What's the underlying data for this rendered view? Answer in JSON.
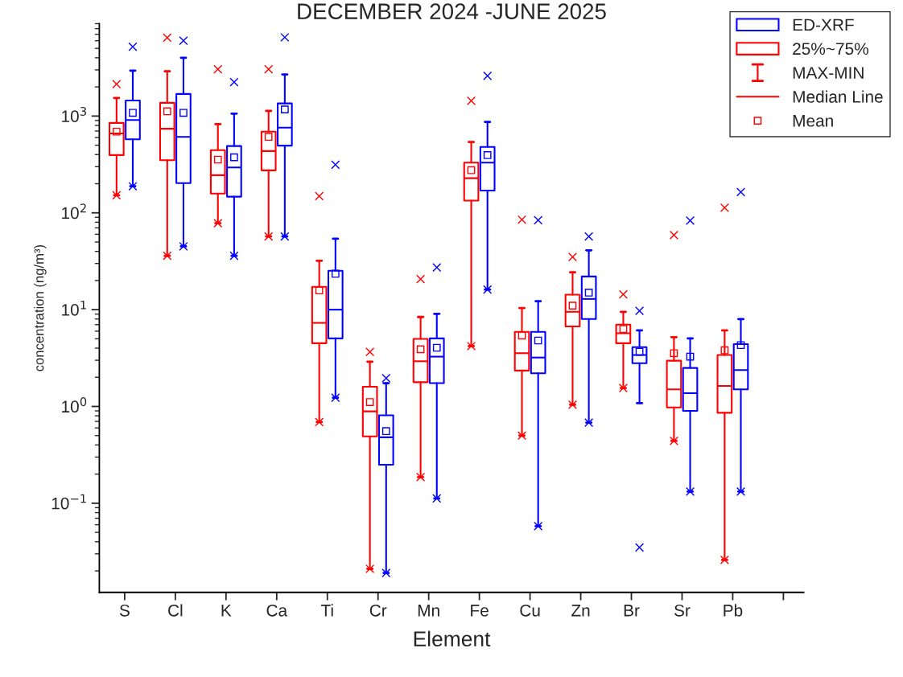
{
  "chart_data": {
    "type": "box",
    "title": "DECEMBER 2024 -JUNE 2025",
    "xlabel": "Element",
    "ylabel": "concentration (ng/m³)",
    "categories": [
      "S",
      "Cl",
      "K",
      "Ca",
      "Ti",
      "Cr",
      "Mn",
      "Fe",
      "Cu",
      "Zn",
      "Br",
      "Sr",
      "Pb",
      null
    ],
    "series": [
      {
        "color": "#ff0000",
        "boxes": [
          {
            "low": 152,
            "q1": 395,
            "median": 660,
            "q3": 850,
            "high": 1540,
            "mean": 690,
            "outliers": [
              2140,
              152
            ]
          },
          {
            "low": 36,
            "q1": 350,
            "median": 740,
            "q3": 1370,
            "high": 2900,
            "mean": 1120,
            "outliers": [
              6450,
              36
            ]
          },
          {
            "low": 78,
            "q1": 158,
            "median": 245,
            "q3": 445,
            "high": 825,
            "mean": 355,
            "outliers": [
              3040,
              78
            ]
          },
          {
            "low": 57,
            "q1": 275,
            "median": 435,
            "q3": 690,
            "high": 1130,
            "mean": 610,
            "outliers": [
              3040,
              57
            ]
          },
          {
            "low": 0.69,
            "q1": 4.5,
            "median": 7.3,
            "q3": 17.2,
            "high": 32,
            "mean": 15.8,
            "outliers": [
              149,
              0.69
            ]
          },
          {
            "low": 0.021,
            "q1": 0.49,
            "median": 0.89,
            "q3": 1.6,
            "high": 2.9,
            "mean": 1.11,
            "outliers": [
              3.67,
              0.021
            ]
          },
          {
            "low": 0.186,
            "q1": 1.78,
            "median": 2.93,
            "q3": 4.98,
            "high": 8.4,
            "mean": 3.9,
            "outliers": [
              20.7,
              0.186
            ]
          },
          {
            "low": 4.2,
            "q1": 134,
            "median": 228,
            "q3": 330,
            "high": 540,
            "mean": 276,
            "outliers": [
              1440,
              4.2
            ]
          },
          {
            "low": 0.5,
            "q1": 2.35,
            "median": 3.55,
            "q3": 5.9,
            "high": 10.4,
            "mean": 5.4,
            "outliers": [
              85,
              0.5
            ]
          },
          {
            "low": 1.04,
            "q1": 6.7,
            "median": 9.5,
            "q3": 14.3,
            "high": 24.3,
            "mean": 11.0,
            "outliers": [
              35,
              1.04
            ]
          },
          {
            "low": 1.55,
            "q1": 4.5,
            "median": 5.7,
            "q3": 7.0,
            "high": 9.5,
            "mean": 6.3,
            "outliers": [
              14.4,
              1.55
            ]
          },
          {
            "low": 0.44,
            "q1": 0.975,
            "median": 1.5,
            "q3": 2.97,
            "high": 5.2,
            "mean": 3.55,
            "outliers": [
              59,
              0.44
            ]
          },
          {
            "low": 0.026,
            "q1": 0.86,
            "median": 1.63,
            "q3": 3.4,
            "high": 6.1,
            "mean": 3.8,
            "outliers": [
              113,
              0.026
            ]
          },
          null
        ]
      },
      {
        "name": "ED-XRF",
        "color": "#0000ff",
        "boxes": [
          {
            "low": 188,
            "q1": 575,
            "median": 910,
            "q3": 1450,
            "high": 2950,
            "mean": 1080,
            "outliers": [
              5200,
              188
            ]
          },
          {
            "low": 45,
            "q1": 203,
            "median": 610,
            "q3": 1690,
            "high": 4000,
            "mean": 1080,
            "outliers": [
              6000,
              45
            ]
          },
          {
            "low": 36,
            "q1": 147,
            "median": 295,
            "q3": 490,
            "high": 1060,
            "mean": 375,
            "outliers": [
              2240,
              36
            ]
          },
          {
            "low": 57,
            "q1": 495,
            "median": 760,
            "q3": 1350,
            "high": 2690,
            "mean": 1170,
            "outliers": [
              6500,
              57
            ]
          },
          {
            "low": 1.23,
            "q1": 5.05,
            "median": 10.0,
            "q3": 25.2,
            "high": 54,
            "mean": 23.5,
            "outliers": [
              314,
              1.23
            ]
          },
          {
            "low": 0.019,
            "q1": 0.25,
            "median": 0.48,
            "q3": 0.81,
            "high": 1.74,
            "mean": 0.556,
            "outliers": [
              1.96,
              0.019
            ]
          },
          {
            "low": 0.112,
            "q1": 1.74,
            "median": 3.27,
            "q3": 5.05,
            "high": 9.06,
            "mean": 4.04,
            "outliers": [
              27.3,
              0.112
            ]
          },
          {
            "low": 16.1,
            "q1": 170,
            "median": 330,
            "q3": 480,
            "high": 870,
            "mean": 395,
            "outliers": [
              2600,
              16.1
            ]
          },
          {
            "low": 0.058,
            "q1": 2.2,
            "median": 3.2,
            "q3": 5.9,
            "high": 12.2,
            "mean": 4.8,
            "outliers": [
              84,
              0.058
            ]
          },
          {
            "low": 0.68,
            "q1": 8.0,
            "median": 12.9,
            "q3": 22,
            "high": 41,
            "mean": 15,
            "outliers": [
              57,
              0.68
            ]
          },
          {
            "low": 1.08,
            "q1": 2.8,
            "median": 3.4,
            "q3": 4.1,
            "high": 6.1,
            "mean": 3.67,
            "outliers": [
              9.7,
              0.035
            ]
          },
          {
            "low": 0.132,
            "q1": 0.9,
            "median": 1.37,
            "q3": 2.5,
            "high": 5.05,
            "mean": 3.27,
            "outliers": [
              83,
              0.132
            ]
          },
          {
            "low": 0.132,
            "q1": 1.5,
            "median": 2.38,
            "q3": 4.4,
            "high": 8.0,
            "mean": 4.3,
            "outliers": [
              164,
              0.132
            ]
          },
          null
        ]
      }
    ],
    "log": true,
    "ylim": [
      0.012,
      9000
    ],
    "yticks": [
      {
        "value": 0.1,
        "label": "10$^{−1}$"
      },
      {
        "value": 1,
        "label": "10$^{0}$"
      },
      {
        "value": 10,
        "label": "10$^{1}$"
      },
      {
        "value": 100,
        "label": "10$^{2}$"
      },
      {
        "value": 1000,
        "label": "10$^{3}$"
      }
    ],
    "annotations": [
      "25%~75%",
      "MAX-MIN",
      "Median Line",
      "Mean"
    ],
    "legend": "top right",
    "grid": false
  }
}
